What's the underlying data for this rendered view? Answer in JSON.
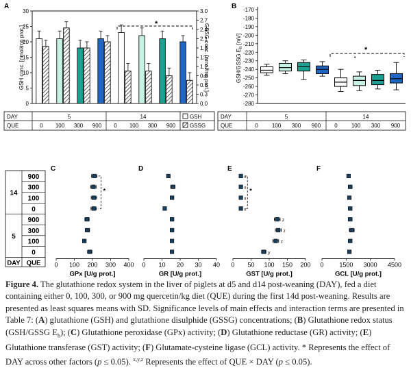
{
  "colors": {
    "white": "#ffffff",
    "pale_green": "#c8f1e6",
    "teal": "#1c9e91",
    "blue": "#1f66c5",
    "stroke": "#111111",
    "hatch": "#333333"
  },
  "panelA": {
    "letter": "A",
    "ylabel_left": "GSH conc. [nmol/mg prot.]",
    "ylabel_right": "GSSG conc. [nmol/mg prot.]",
    "star": "*",
    "table": {
      "row1_label": "DAY",
      "row2_label": "QUE",
      "days": [
        "5",
        "14"
      ],
      "que": [
        "0",
        "100",
        "300",
        "900",
        "0",
        "100",
        "300",
        "900"
      ],
      "legend": [
        {
          "label": "GSH",
          "icon": "open-box"
        },
        {
          "label": "GSSG",
          "icon": "hatched-box"
        }
      ]
    }
  },
  "panelB": {
    "letter": "B",
    "ylabel": "GSH/GSSG E",
    "ylabel_sub": "h",
    "ylabel_unit": " [mV]",
    "star": "*",
    "dot": "•",
    "table": {
      "row1_label": "DAY",
      "row2_label": "QUE",
      "days": [
        "5",
        "14"
      ],
      "que": [
        "0",
        "100",
        "300",
        "900",
        "0",
        "100",
        "300",
        "900"
      ]
    }
  },
  "lower_table": {
    "row_label_day": "DAY",
    "row_label_que": "QUE",
    "days": [
      "14",
      "5"
    ],
    "que": [
      "900",
      "300",
      "100",
      "0",
      "900",
      "300",
      "100",
      "0"
    ]
  },
  "chart_data": [
    {
      "panel": "A",
      "type": "bar",
      "categories": [
        "d5 Q0",
        "d5 Q100",
        "d5 Q300",
        "d5 Q900",
        "d14 Q0",
        "d14 Q100",
        "d14 Q300",
        "d14 Q900"
      ],
      "series": [
        {
          "name": "GSH",
          "axis": "left",
          "values": [
            21,
            21,
            18,
            21,
            23,
            22,
            21,
            20
          ],
          "errors": [
            2.5,
            2.5,
            2.5,
            2.5,
            2.5,
            2.5,
            2.5,
            2
          ]
        },
        {
          "name": "GSSG",
          "axis": "right",
          "values": [
            1.85,
            2.45,
            1.8,
            2.0,
            1.05,
            1.05,
            0.9,
            0.75
          ],
          "errors": [
            0.2,
            0.2,
            0.2,
            0.2,
            0.25,
            0.25,
            0.25,
            0.25
          ]
        }
      ],
      "ylim_left": [
        0,
        30
      ],
      "yticks_left": [
        "0",
        "5",
        "10",
        "15",
        "20",
        "25",
        "30"
      ],
      "ylim_right": [
        0,
        3
      ],
      "yticks_right": [
        "0.0",
        "0.3",
        "0.6",
        "0.9",
        "1.2",
        "1.5",
        "1.8",
        "2.1",
        "2.4",
        "2.7",
        "3.0"
      ],
      "annotations": [
        "*"
      ]
    },
    {
      "panel": "B",
      "type": "box",
      "categories": [
        "d5 Q0",
        "d5 Q100",
        "d5 Q300",
        "d5 Q900",
        "d14 Q0",
        "d14 Q100",
        "d14 Q300",
        "d14 Q900"
      ],
      "boxes": [
        {
          "min": -247,
          "q1": -244,
          "median": -241,
          "q3": -237,
          "max": -234
        },
        {
          "min": -245,
          "q1": -242,
          "median": -238,
          "q3": -233,
          "max": -230
        },
        {
          "min": -252,
          "q1": -242,
          "median": -237,
          "q3": -232,
          "max": -229
        },
        {
          "min": -248,
          "q1": -245,
          "median": -240,
          "q3": -236,
          "max": -231
        },
        {
          "min": -266,
          "q1": -260,
          "median": -255,
          "q3": -250,
          "max": -240
        },
        {
          "min": -265,
          "q1": -259,
          "median": -253,
          "q3": -248,
          "max": -243
        },
        {
          "min": -263,
          "q1": -258,
          "median": -253,
          "q3": -246,
          "max": -241
        },
        {
          "min": -264,
          "q1": -256,
          "median": -251,
          "q3": -245,
          "max": -232
        }
      ],
      "ylim": [
        -280,
        -170
      ],
      "yticks": [
        "-280",
        "-270",
        "-260",
        "-250",
        "-240",
        "-230",
        "-220",
        "-210",
        "-200",
        "-190",
        "-180",
        "-170"
      ],
      "annotations": [
        "*",
        "•"
      ]
    },
    {
      "panel": "C",
      "type": "dot_errorbar",
      "xlabel": "GPx [U/g prot.]",
      "xlim": [
        0,
        400
      ],
      "xticks": [
        "0",
        "100",
        "200",
        "300",
        "400"
      ],
      "rows": [
        "d14 Q900",
        "d14 Q300",
        "d14 Q100",
        "d14 Q0",
        "d5 Q900",
        "d5 Q300",
        "d5 Q100",
        "d5 Q0"
      ],
      "values": [
        210,
        205,
        208,
        207,
        170,
        172,
        155,
        185
      ],
      "errors": [
        15,
        15,
        15,
        15,
        12,
        12,
        10,
        12
      ],
      "labels": [
        "",
        "",
        "",
        "",
        "",
        "",
        "",
        ""
      ],
      "annotations": [
        "*"
      ]
    },
    {
      "panel": "D",
      "type": "dot_errorbar",
      "xlabel": "GR [U/g prot.]",
      "xlim": [
        0,
        40
      ],
      "xticks": [
        "0",
        "10",
        "20",
        "30",
        "40"
      ],
      "rows": [
        "d14 Q900",
        "d14 Q300",
        "d14 Q100",
        "d14 Q0",
        "d5 Q900",
        "d5 Q300",
        "d5 Q100",
        "d5 Q0"
      ],
      "values": [
        13.5,
        16,
        15.5,
        11.5,
        15.5,
        15.5,
        15.5,
        15.5
      ],
      "errors": [
        0.8,
        1.2,
        1.0,
        0.8,
        1.0,
        1.0,
        0.8,
        0.8
      ],
      "labels": [
        "",
        "",
        "",
        "",
        "",
        "",
        "",
        ""
      ]
    },
    {
      "panel": "E",
      "type": "dot_errorbar",
      "xlabel": "GST [U/g prot.]",
      "xlim": [
        0,
        200
      ],
      "xticks": [
        "0",
        "50",
        "100",
        "150",
        "200"
      ],
      "rows": [
        "d14 Q900",
        "d14 Q300",
        "d14 Q100",
        "d14 Q0",
        "d5 Q900",
        "d5 Q300",
        "d5 Q100",
        "d5 Q0"
      ],
      "values": [
        22,
        22,
        22,
        22,
        122,
        125,
        118,
        85
      ],
      "errors": [
        3,
        3,
        3,
        3,
        8,
        8,
        8,
        6
      ],
      "labels": [
        "x",
        "x",
        "x",
        "x",
        "z",
        "z",
        "z",
        "y"
      ],
      "annotations": [
        "*"
      ]
    },
    {
      "panel": "F",
      "type": "dot_errorbar",
      "xlabel": "GCL [U/g prot.]",
      "xlim": [
        0,
        4500
      ],
      "xticks": [
        "0",
        "1500",
        "3000",
        "4500"
      ],
      "rows": [
        "d14 Q900",
        "d14 Q300",
        "d14 Q100",
        "d14 Q0",
        "d5 Q900",
        "d5 Q300",
        "d5 Q100",
        "d5 Q0"
      ],
      "values": [
        1650,
        1750,
        1700,
        1750,
        1750,
        1850,
        1750,
        1700
      ],
      "errors": [
        100,
        120,
        100,
        110,
        120,
        150,
        110,
        110
      ],
      "labels": [
        "",
        "",
        "",
        "",
        "",
        "",
        "",
        ""
      ]
    }
  ],
  "caption": {
    "lead": "Figure 4.",
    "parts": [
      {
        "t": " The glutathione redox system in the liver of piglets at d5 and d14 post-weaning (DAY), fed a diet containing either 0, 100, 300, or 900 mg quercetin/kg diet (QUE) during the first 14d post-weaning. Results are presented as least squares means with SD. Significance levels of main effects and interaction terms are presented in Table 7: ("
      },
      {
        "b": "A"
      },
      {
        "t": ") glutathione (GSH) and glutathione disulphide (GSSG) concentrations; ("
      },
      {
        "b": "B"
      },
      {
        "t": ") Glutathione redox status (GSH/GSSG E"
      },
      {
        "sub": "h"
      },
      {
        "t": "); ("
      },
      {
        "b": "C"
      },
      {
        "t": ") Glutathione peroxidase (GPx) activity; ("
      },
      {
        "b": "D"
      },
      {
        "t": ") Glutathione reductase (GR) activity; ("
      },
      {
        "b": "E"
      },
      {
        "t": ") Glutathione transferase (GST) activity; ("
      },
      {
        "b": "F"
      },
      {
        "t": ") Glutamate-cysteine ligase (GCL) activity. * Represents the effect of DAY across other factors ("
      },
      {
        "i": "p"
      },
      {
        "t": " ≤ 0.05). "
      },
      {
        "sup": "x,y,z"
      },
      {
        "t": " Represents the effect of QUE × DAY ("
      },
      {
        "i": "p"
      },
      {
        "t": " ≤ 0.05)."
      }
    ]
  }
}
